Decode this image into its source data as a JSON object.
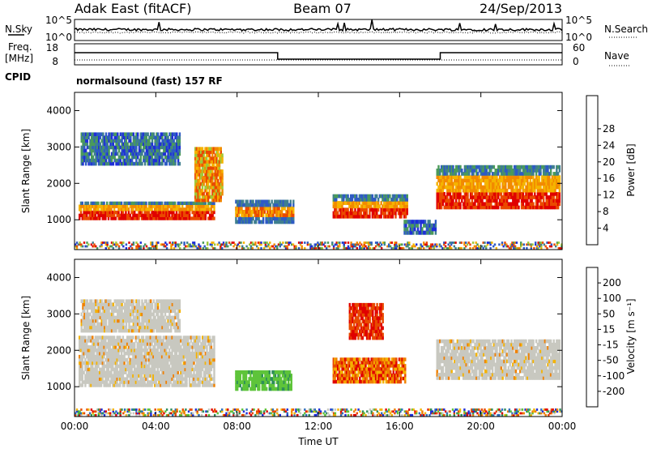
{
  "header": {
    "station": "Adak East (fitACF)",
    "beam": "Beam 07",
    "date": "24/Sep/2013"
  },
  "noise_panel": {
    "left_label": "N.Sky",
    "right_label": "N.Search",
    "ticks": [
      "10^5",
      "10^0"
    ]
  },
  "freq_panel": {
    "left_label_1": "Freq.",
    "left_label_2": "[MHz]",
    "left_ticks": [
      "18",
      "8"
    ],
    "right_label": "Nave",
    "right_ticks": [
      "60",
      "0"
    ],
    "cpid_label": "CPID",
    "cpid_text": "normalsound (fast) 157 RF"
  },
  "chart_data": [
    {
      "type": "heatmap",
      "name": "power",
      "ylabel": "Slant Range [km]",
      "xlabel": "",
      "yticks": [
        "1000",
        "2000",
        "3000",
        "4000"
      ],
      "ylim": [
        180,
        4500
      ],
      "colorbar": {
        "label": "Power [dB]",
        "ticks": [
          "4",
          "8",
          "12",
          "16",
          "20",
          "24",
          "28"
        ],
        "colors": [
          "#1f2fd8",
          "#2e5bc4",
          "#3f7f8f",
          "#4a9a5a",
          "#9fc93a",
          "#f5b400",
          "#f28a00",
          "#ea4a00",
          "#e00000"
        ]
      },
      "features": [
        {
          "t_start": 0.2,
          "t_end": 6.9,
          "range_min": 1000,
          "range_max": 1500,
          "level": "strong"
        },
        {
          "t_start": 5.9,
          "t_end": 7.3,
          "range_min": 1500,
          "range_max": 3000,
          "level": "rising"
        },
        {
          "t_start": 0.3,
          "t_end": 5.2,
          "range_min": 2500,
          "range_max": 3400,
          "level": "weak"
        },
        {
          "t_start": 7.9,
          "t_end": 10.8,
          "range_min": 900,
          "range_max": 1550,
          "level": "medium"
        },
        {
          "t_start": 12.7,
          "t_end": 16.4,
          "range_min": 1050,
          "range_max": 1700,
          "level": "strong"
        },
        {
          "t_start": 16.2,
          "t_end": 17.8,
          "range_min": 600,
          "range_max": 1000,
          "level": "weak"
        },
        {
          "t_start": 17.8,
          "t_end": 23.9,
          "range_min": 1300,
          "range_max": 2500,
          "level": "strong"
        },
        {
          "t_start": 0.0,
          "t_end": 24.0,
          "range_min": 200,
          "range_max": 400,
          "level": "noise"
        }
      ]
    },
    {
      "type": "heatmap",
      "name": "velocity",
      "ylabel": "Slant Range [km]",
      "xlabel": "Time UT",
      "xticks": [
        "00:00",
        "04:00",
        "08:00",
        "12:00",
        "16:00",
        "20:00",
        "00:00"
      ],
      "yticks": [
        "1000",
        "2000",
        "3000",
        "4000"
      ],
      "ylim": [
        180,
        4500
      ],
      "colorbar": {
        "label": "Velocity [m s⁻¹]",
        "ticks": [
          "200",
          "100",
          "50",
          "15",
          "-15",
          "-50",
          "-100",
          "-200"
        ],
        "colors": [
          "#1f2fd8",
          "#2f6fbf",
          "#2f8f5a",
          "#5ec43a",
          "#c8c8c0",
          "#f4b200",
          "#f08000",
          "#e84a00",
          "#e00000"
        ]
      },
      "features": [
        {
          "t_start": 0.2,
          "t_end": 6.9,
          "range_min": 1000,
          "range_max": 2400,
          "velocity": "near-zero"
        },
        {
          "t_start": 0.3,
          "t_end": 5.2,
          "range_min": 2500,
          "range_max": 3400,
          "velocity": "near-zero"
        },
        {
          "t_start": 7.9,
          "t_end": 10.7,
          "range_min": 900,
          "range_max": 1450,
          "velocity": "positive"
        },
        {
          "t_start": 12.7,
          "t_end": 16.3,
          "range_min": 1100,
          "range_max": 1800,
          "velocity": "negative"
        },
        {
          "t_start": 13.5,
          "t_end": 15.2,
          "range_min": 2300,
          "range_max": 3300,
          "velocity": "strongly-negative"
        },
        {
          "t_start": 17.8,
          "t_end": 23.9,
          "range_min": 1200,
          "range_max": 2300,
          "velocity": "near-zero"
        },
        {
          "t_start": 0.0,
          "t_end": 24.0,
          "range_min": 200,
          "range_max": 400,
          "velocity": "mixed"
        }
      ]
    }
  ]
}
